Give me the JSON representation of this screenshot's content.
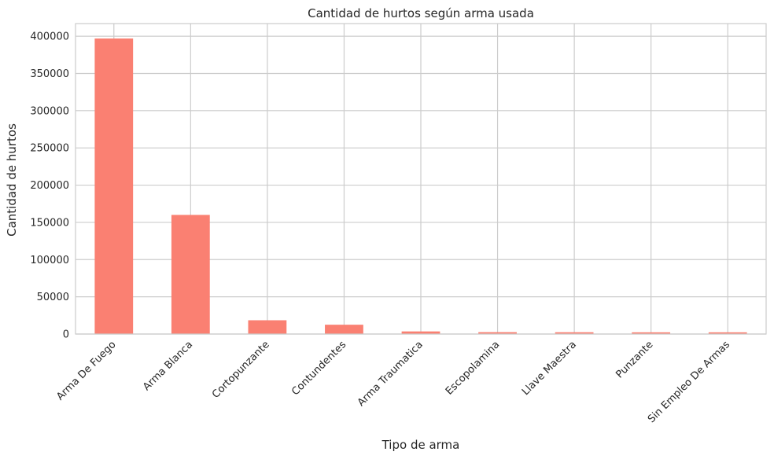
{
  "chart_data": {
    "type": "bar",
    "title": "Cantidad de hurtos según arma usada",
    "xlabel": "Tipo de arma",
    "ylabel": "Cantidad de hurtos",
    "categories": [
      "Arma De Fuego",
      "Arma Blanca",
      "Cortopunzante",
      "Contundentes",
      "Arma Traumatica",
      "Escopolamina",
      "Llave Maestra",
      "Punzante",
      "Sin Empleo De Armas"
    ],
    "values": [
      397000,
      160000,
      18500,
      12500,
      3500,
      2500,
      2400,
      2300,
      2300
    ],
    "ylim": [
      0,
      417000
    ],
    "yticks": [
      0,
      50000,
      100000,
      150000,
      200000,
      250000,
      300000,
      350000,
      400000
    ],
    "grid": true,
    "bar_color": "#fa8072",
    "grid_color": "#cccccc"
  }
}
